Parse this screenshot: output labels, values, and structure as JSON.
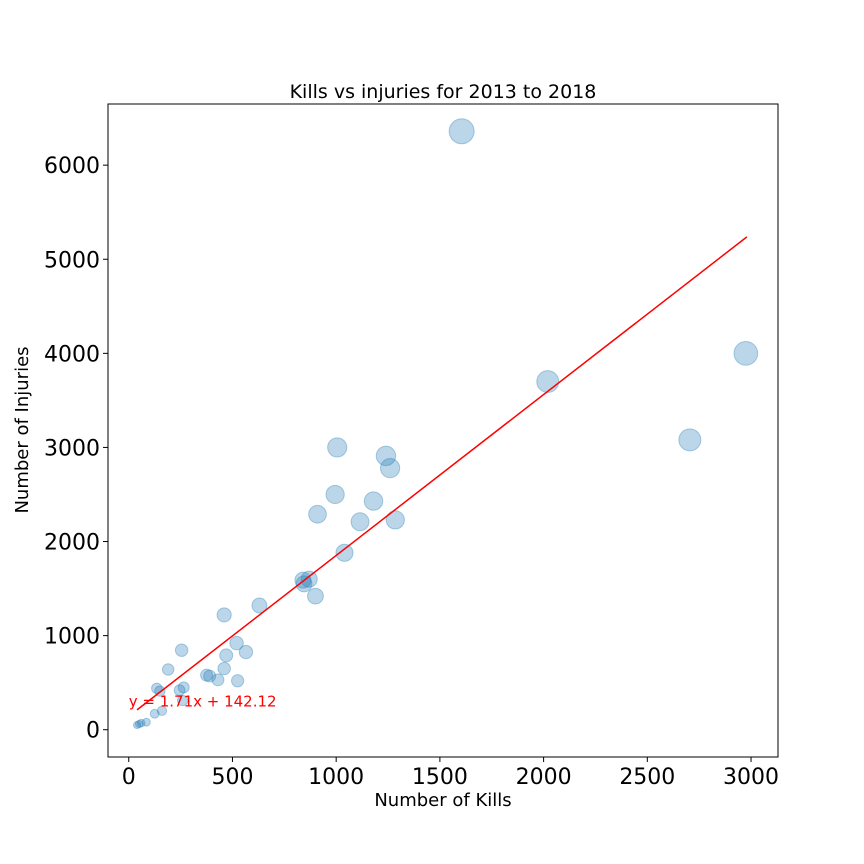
{
  "chart_data": {
    "type": "scatter",
    "title": "Kills vs injuries for 2013 to 2018",
    "xlabel": "Number of Kills",
    "ylabel": "Number of Injuries",
    "xlim": [
      -100,
      3130
    ],
    "ylim": [
      -290,
      6650
    ],
    "xticks": [
      0,
      500,
      1000,
      1500,
      2000,
      2500,
      3000
    ],
    "yticks": [
      0,
      1000,
      2000,
      3000,
      4000,
      5000,
      6000
    ],
    "grid": false,
    "point_color": "#1f77b4",
    "point_opacity": 0.3,
    "points": [
      {
        "x": 1605,
        "y": 6360
      },
      {
        "x": 2975,
        "y": 4000
      },
      {
        "x": 2020,
        "y": 3700
      },
      {
        "x": 2705,
        "y": 3080
      },
      {
        "x": 1005,
        "y": 3000
      },
      {
        "x": 1240,
        "y": 2910
      },
      {
        "x": 1260,
        "y": 2780
      },
      {
        "x": 995,
        "y": 2500
      },
      {
        "x": 1180,
        "y": 2430
      },
      {
        "x": 910,
        "y": 2290
      },
      {
        "x": 1115,
        "y": 2210
      },
      {
        "x": 1285,
        "y": 2230
      },
      {
        "x": 1040,
        "y": 1880
      },
      {
        "x": 840,
        "y": 1590
      },
      {
        "x": 870,
        "y": 1600
      },
      {
        "x": 845,
        "y": 1550
      },
      {
        "x": 900,
        "y": 1420
      },
      {
        "x": 630,
        "y": 1320
      },
      {
        "x": 460,
        "y": 1220
      },
      {
        "x": 520,
        "y": 920
      },
      {
        "x": 255,
        "y": 845
      },
      {
        "x": 565,
        "y": 825
      },
      {
        "x": 470,
        "y": 790
      },
      {
        "x": 460,
        "y": 650
      },
      {
        "x": 190,
        "y": 640
      },
      {
        "x": 375,
        "y": 580
      },
      {
        "x": 390,
        "y": 570
      },
      {
        "x": 430,
        "y": 530
      },
      {
        "x": 525,
        "y": 520
      },
      {
        "x": 265,
        "y": 450
      },
      {
        "x": 135,
        "y": 440
      },
      {
        "x": 245,
        "y": 420
      },
      {
        "x": 150,
        "y": 410
      },
      {
        "x": 260,
        "y": 310
      },
      {
        "x": 160,
        "y": 200
      },
      {
        "x": 125,
        "y": 170
      },
      {
        "x": 85,
        "y": 80
      },
      {
        "x": 60,
        "y": 70
      },
      {
        "x": 50,
        "y": 60
      },
      {
        "x": 40,
        "y": 50
      }
    ],
    "trendline": {
      "x": [
        40,
        2980
      ],
      "y": [
        210.52,
        5237.92
      ],
      "color": "#ff0000",
      "label": "y = 1.71x + 142.12",
      "label_color": "#ff0000"
    }
  }
}
